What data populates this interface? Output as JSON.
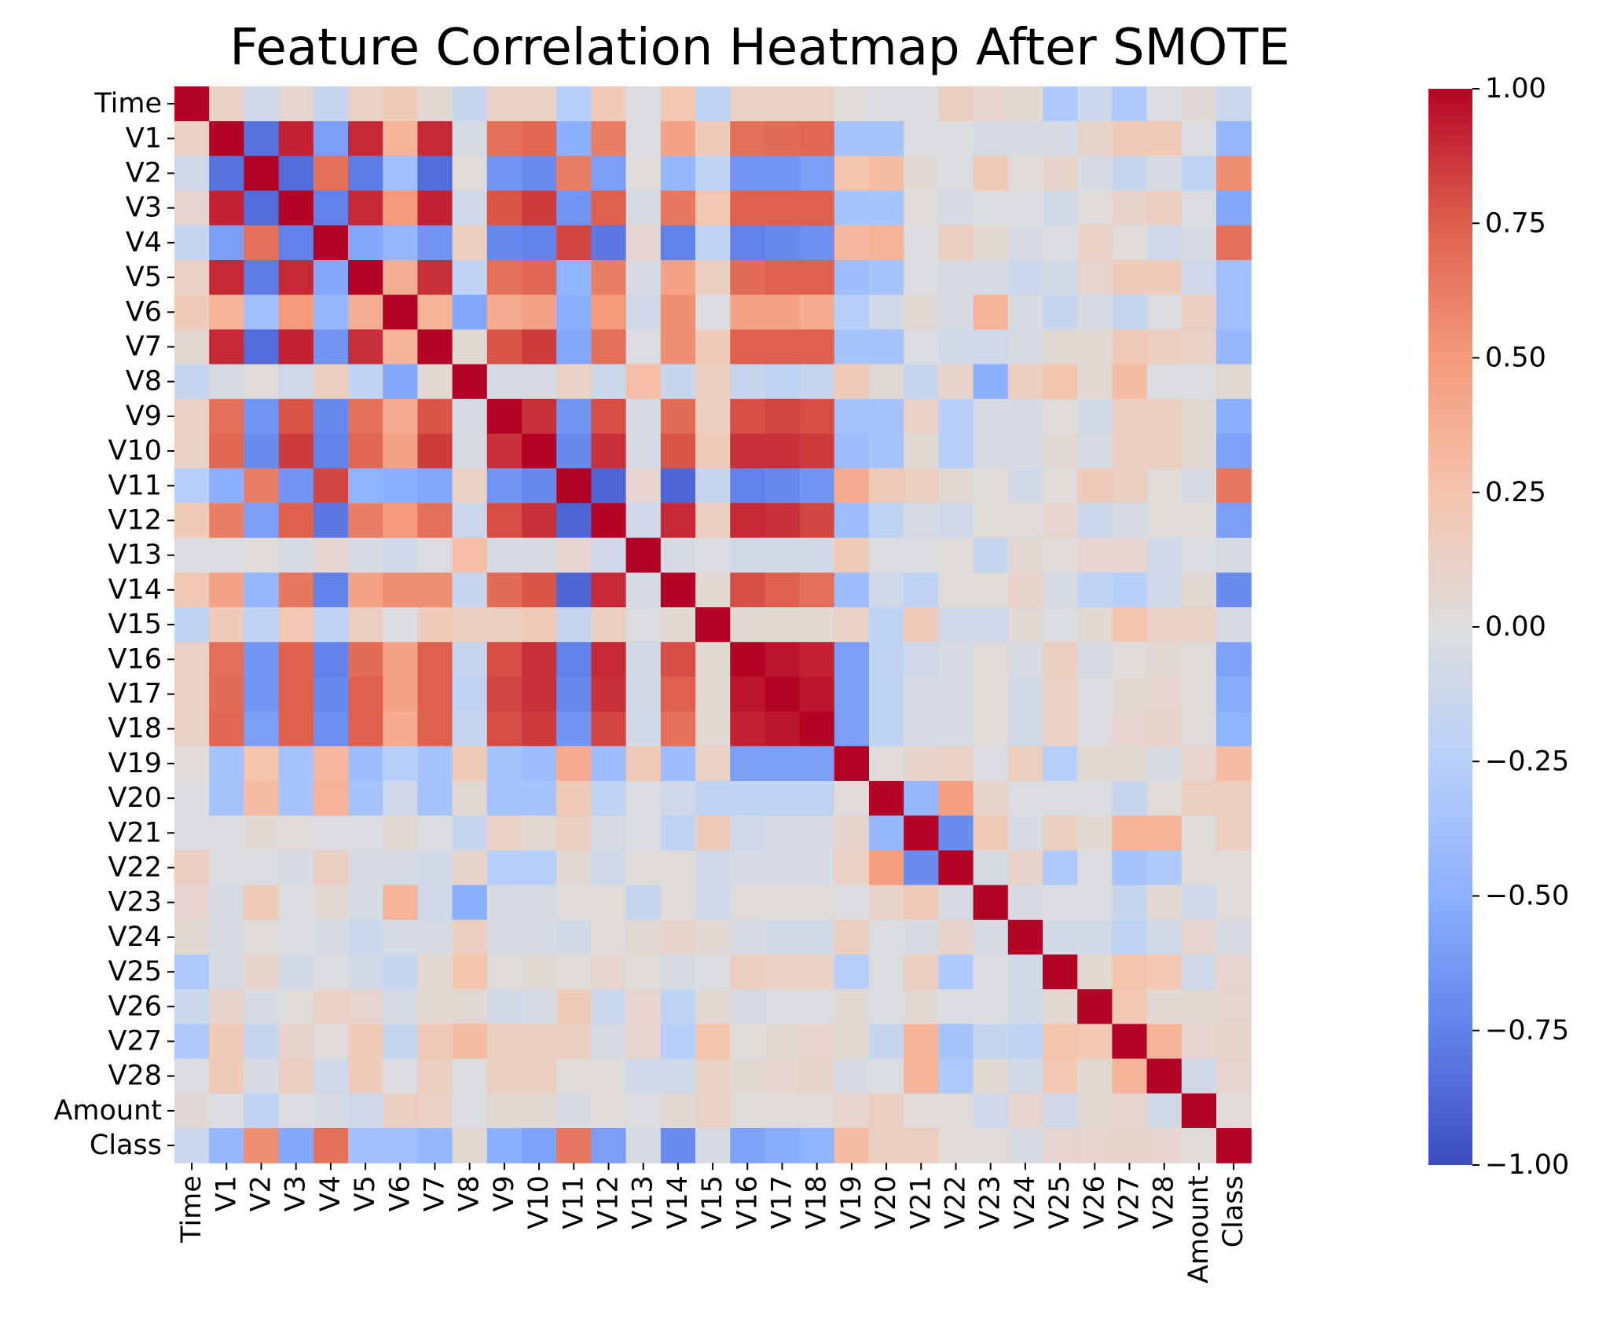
{
  "chart_data": {
    "type": "heatmap",
    "title": "Feature Correlation Heatmap After SMOTE",
    "xlabel": "",
    "ylabel": "",
    "labels": [
      "Time",
      "V1",
      "V2",
      "V3",
      "V4",
      "V5",
      "V6",
      "V7",
      "V8",
      "V9",
      "V10",
      "V11",
      "V12",
      "V13",
      "V14",
      "V15",
      "V16",
      "V17",
      "V18",
      "V19",
      "V20",
      "V21",
      "V22",
      "V23",
      "V24",
      "V25",
      "V26",
      "V27",
      "V28",
      "Amount",
      "Class"
    ],
    "colormap": "coolwarm",
    "vmin": -1.0,
    "vmax": 1.0,
    "colorbar_ticks": [
      "1.00",
      "0.75",
      "0.50",
      "0.25",
      "0.00",
      "−0.25",
      "−0.50",
      "−0.75",
      "−1.00"
    ],
    "colorbar_tick_values": [
      1.0,
      0.75,
      0.5,
      0.25,
      0.0,
      -0.25,
      -0.5,
      -0.75,
      -1.0
    ],
    "matrix": [
      [
        1,
        0.12,
        -0.1,
        0.08,
        -0.15,
        0.12,
        0.18,
        0.06,
        -0.15,
        0.12,
        0.12,
        -0.25,
        0.2,
        -0.02,
        0.22,
        -0.2,
        0.12,
        0.12,
        0.12,
        0.02,
        -0.02,
        -0.02,
        0.15,
        0.08,
        0.05,
        -0.3,
        -0.12,
        -0.3,
        -0.02,
        0.04,
        -0.12
      ],
      [
        0.12,
        1,
        -0.82,
        0.92,
        -0.6,
        0.9,
        0.35,
        0.9,
        -0.05,
        0.68,
        0.72,
        -0.5,
        0.62,
        -0.02,
        0.45,
        0.18,
        0.68,
        0.7,
        0.72,
        -0.35,
        -0.35,
        -0.02,
        -0.02,
        -0.05,
        -0.05,
        -0.05,
        0.1,
        0.2,
        0.2,
        -0.02,
        -0.45
      ],
      [
        -0.1,
        -0.82,
        1,
        -0.85,
        0.68,
        -0.78,
        -0.38,
        -0.85,
        0.02,
        -0.65,
        -0.7,
        0.62,
        -0.6,
        0.02,
        -0.45,
        -0.2,
        -0.65,
        -0.65,
        -0.6,
        0.25,
        0.3,
        0.05,
        -0.02,
        0.2,
        0.02,
        0.1,
        -0.05,
        -0.15,
        -0.05,
        -0.2,
        0.55
      ],
      [
        0.08,
        0.92,
        -0.85,
        1,
        -0.75,
        0.9,
        0.5,
        0.92,
        -0.1,
        0.78,
        0.85,
        -0.65,
        0.75,
        -0.05,
        0.65,
        0.22,
        0.75,
        0.75,
        0.75,
        -0.35,
        -0.35,
        0.02,
        -0.05,
        -0.02,
        -0.02,
        -0.08,
        0.02,
        0.1,
        0.15,
        -0.02,
        -0.55
      ],
      [
        -0.15,
        -0.6,
        0.68,
        -0.75,
        1,
        -0.55,
        -0.45,
        -0.65,
        0.15,
        -0.72,
        -0.75,
        0.82,
        -0.8,
        0.08,
        -0.75,
        -0.2,
        -0.75,
        -0.72,
        -0.68,
        0.32,
        0.35,
        -0.02,
        0.15,
        0.05,
        -0.05,
        -0.02,
        0.12,
        0.02,
        -0.1,
        -0.05,
        0.68
      ],
      [
        0.12,
        0.9,
        -0.78,
        0.9,
        -0.55,
        1,
        0.38,
        0.88,
        -0.2,
        0.68,
        0.72,
        -0.48,
        0.62,
        -0.05,
        0.45,
        0.15,
        0.7,
        0.75,
        0.75,
        -0.4,
        -0.35,
        -0.02,
        -0.05,
        -0.05,
        -0.12,
        -0.08,
        0.08,
        0.18,
        0.18,
        -0.1,
        -0.38
      ],
      [
        0.18,
        0.35,
        -0.38,
        0.5,
        -0.45,
        0.38,
        1,
        0.35,
        -0.55,
        0.4,
        0.45,
        -0.5,
        0.5,
        -0.1,
        0.55,
        -0.02,
        0.45,
        0.45,
        0.4,
        -0.25,
        -0.1,
        0.05,
        -0.05,
        0.35,
        -0.05,
        -0.15,
        -0.05,
        -0.15,
        -0.02,
        0.15,
        -0.38
      ],
      [
        0.06,
        0.9,
        -0.85,
        0.92,
        -0.65,
        0.88,
        0.35,
        1,
        0.05,
        0.78,
        0.85,
        -0.55,
        0.68,
        -0.02,
        0.55,
        0.18,
        0.75,
        0.75,
        0.75,
        -0.35,
        -0.35,
        -0.02,
        -0.08,
        -0.1,
        -0.05,
        0.05,
        0.05,
        0.2,
        0.15,
        0.12,
        -0.45
      ],
      [
        -0.15,
        -0.05,
        0.02,
        -0.1,
        0.15,
        -0.2,
        -0.55,
        0.05,
        1,
        -0.05,
        -0.05,
        0.12,
        -0.12,
        0.28,
        -0.15,
        0.15,
        -0.15,
        -0.2,
        -0.15,
        0.2,
        0.05,
        -0.15,
        0.1,
        -0.5,
        0.15,
        0.25,
        0.05,
        0.3,
        -0.02,
        -0.02,
        0.05
      ],
      [
        0.12,
        0.68,
        -0.65,
        0.78,
        -0.72,
        0.68,
        0.4,
        0.78,
        -0.05,
        1,
        0.88,
        -0.65,
        0.8,
        -0.05,
        0.7,
        0.15,
        0.8,
        0.82,
        0.8,
        -0.35,
        -0.35,
        0.12,
        -0.25,
        -0.05,
        -0.05,
        0.02,
        -0.08,
        0.15,
        0.15,
        0.05,
        -0.5
      ],
      [
        0.12,
        0.72,
        -0.7,
        0.85,
        -0.75,
        0.72,
        0.45,
        0.85,
        -0.05,
        0.88,
        1,
        -0.72,
        0.88,
        -0.05,
        0.78,
        0.2,
        0.88,
        0.88,
        0.85,
        -0.4,
        -0.35,
        0.05,
        -0.25,
        -0.05,
        -0.05,
        0.05,
        -0.05,
        0.15,
        0.15,
        0.05,
        -0.58
      ],
      [
        -0.25,
        -0.5,
        0.62,
        -0.65,
        0.82,
        -0.48,
        -0.5,
        -0.55,
        0.12,
        -0.65,
        -0.72,
        1,
        -0.88,
        0.08,
        -0.88,
        -0.15,
        -0.75,
        -0.72,
        -0.65,
        0.4,
        0.2,
        0.15,
        0.05,
        0.02,
        -0.08,
        0.02,
        0.18,
        0.15,
        0.02,
        -0.05,
        0.65
      ],
      [
        0.2,
        0.62,
        -0.6,
        0.75,
        -0.8,
        0.62,
        0.5,
        0.68,
        -0.12,
        0.8,
        0.88,
        -0.88,
        1,
        -0.1,
        0.9,
        0.15,
        0.9,
        0.88,
        0.82,
        -0.4,
        -0.2,
        -0.05,
        -0.1,
        0.02,
        0.02,
        0.08,
        -0.12,
        -0.05,
        0.02,
        0.02,
        -0.6
      ],
      [
        -0.02,
        -0.02,
        0.02,
        -0.05,
        0.08,
        -0.05,
        -0.1,
        -0.02,
        0.28,
        -0.05,
        -0.05,
        0.08,
        -0.1,
        1,
        -0.05,
        -0.02,
        -0.08,
        -0.08,
        -0.08,
        0.2,
        -0.02,
        -0.02,
        0.02,
        -0.15,
        0.05,
        0.02,
        0.08,
        0.08,
        -0.1,
        -0.02,
        -0.05
      ],
      [
        0.22,
        0.45,
        -0.45,
        0.65,
        -0.75,
        0.45,
        0.55,
        0.55,
        -0.15,
        0.7,
        0.78,
        -0.88,
        0.9,
        -0.05,
        1,
        0.05,
        0.8,
        0.75,
        0.68,
        -0.4,
        -0.1,
        -0.2,
        0.02,
        0.02,
        0.1,
        -0.05,
        -0.2,
        -0.25,
        -0.1,
        0.05,
        -0.7
      ],
      [
        -0.2,
        0.18,
        -0.2,
        0.22,
        -0.2,
        0.15,
        -0.02,
        0.18,
        0.15,
        0.15,
        0.2,
        -0.15,
        0.15,
        -0.02,
        0.05,
        1,
        0.05,
        0.05,
        0.05,
        0.12,
        -0.2,
        0.18,
        -0.1,
        -0.1,
        0.05,
        -0.02,
        0.05,
        0.25,
        0.12,
        0.12,
        -0.05
      ],
      [
        0.12,
        0.68,
        -0.65,
        0.75,
        -0.75,
        0.7,
        0.45,
        0.75,
        -0.15,
        0.8,
        0.88,
        -0.75,
        0.9,
        -0.08,
        0.8,
        0.05,
        1,
        0.95,
        0.92,
        -0.6,
        -0.2,
        -0.1,
        -0.05,
        0.02,
        -0.05,
        0.15,
        -0.05,
        0.02,
        0.05,
        0.02,
        -0.58
      ],
      [
        0.12,
        0.7,
        -0.65,
        0.75,
        -0.72,
        0.75,
        0.45,
        0.75,
        -0.2,
        0.82,
        0.88,
        -0.72,
        0.88,
        -0.08,
        0.75,
        0.05,
        0.95,
        1,
        0.95,
        -0.6,
        -0.2,
        -0.05,
        -0.05,
        0.02,
        -0.08,
        0.12,
        -0.02,
        0.05,
        0.08,
        0.02,
        -0.52
      ],
      [
        0.12,
        0.72,
        -0.6,
        0.75,
        -0.68,
        0.75,
        0.4,
        0.75,
        -0.15,
        0.8,
        0.85,
        -0.65,
        0.82,
        -0.08,
        0.68,
        0.05,
        0.92,
        0.95,
        1,
        -0.6,
        -0.2,
        -0.05,
        -0.05,
        0.02,
        -0.08,
        0.12,
        -0.02,
        0.08,
        0.1,
        0.02,
        -0.48
      ],
      [
        0.02,
        -0.35,
        0.25,
        -0.35,
        0.32,
        -0.4,
        -0.25,
        -0.35,
        0.2,
        -0.35,
        -0.4,
        0.4,
        -0.4,
        0.2,
        -0.4,
        0.12,
        -0.6,
        -0.6,
        -0.6,
        1,
        0.02,
        0.1,
        0.12,
        -0.02,
        0.15,
        -0.25,
        0.05,
        0.05,
        -0.05,
        0.08,
        0.3
      ],
      [
        -0.02,
        -0.35,
        0.3,
        -0.35,
        0.35,
        -0.35,
        -0.1,
        -0.35,
        0.05,
        -0.35,
        -0.35,
        0.2,
        -0.2,
        -0.02,
        -0.1,
        -0.2,
        -0.2,
        -0.2,
        -0.2,
        0.02,
        1,
        -0.45,
        0.48,
        0.1,
        -0.02,
        -0.02,
        -0.02,
        -0.15,
        0.02,
        0.15,
        0.15
      ],
      [
        -0.02,
        -0.02,
        0.05,
        0.02,
        -0.02,
        -0.02,
        0.05,
        -0.02,
        -0.15,
        0.12,
        0.05,
        0.15,
        -0.05,
        -0.02,
        -0.2,
        0.18,
        -0.1,
        -0.05,
        -0.05,
        0.1,
        -0.45,
        1,
        -0.7,
        0.2,
        -0.05,
        0.15,
        0.05,
        0.35,
        0.35,
        0.02,
        0.15
      ],
      [
        0.15,
        -0.02,
        -0.02,
        -0.05,
        0.15,
        -0.05,
        -0.05,
        -0.08,
        0.1,
        -0.25,
        -0.25,
        0.05,
        -0.1,
        0.02,
        0.02,
        -0.1,
        -0.05,
        -0.05,
        -0.05,
        0.12,
        0.48,
        -0.7,
        1,
        -0.05,
        0.1,
        -0.3,
        -0.02,
        -0.35,
        -0.3,
        0.02,
        0.02
      ],
      [
        0.08,
        -0.05,
        0.2,
        -0.02,
        0.05,
        -0.05,
        0.35,
        -0.1,
        -0.5,
        -0.05,
        -0.05,
        0.02,
        0.02,
        -0.15,
        0.02,
        -0.1,
        0.02,
        0.02,
        0.02,
        -0.02,
        0.1,
        0.2,
        -0.05,
        1,
        -0.05,
        -0.02,
        -0.02,
        -0.15,
        0.05,
        -0.1,
        0.02
      ],
      [
        0.05,
        -0.05,
        0.02,
        -0.02,
        -0.05,
        -0.12,
        -0.05,
        -0.05,
        0.15,
        -0.05,
        -0.05,
        -0.08,
        0.02,
        0.05,
        0.1,
        0.05,
        -0.05,
        -0.08,
        -0.08,
        0.15,
        -0.02,
        -0.05,
        0.1,
        -0.05,
        1,
        -0.08,
        -0.08,
        -0.2,
        -0.08,
        0.08,
        -0.05
      ],
      [
        -0.3,
        -0.05,
        0.1,
        -0.08,
        -0.02,
        -0.08,
        -0.15,
        0.05,
        0.25,
        0.02,
        0.05,
        0.02,
        0.08,
        0.02,
        -0.05,
        -0.02,
        0.15,
        0.12,
        0.12,
        -0.25,
        -0.02,
        0.15,
        -0.3,
        -0.02,
        -0.08,
        1,
        0.05,
        0.25,
        0.22,
        -0.1,
        0.08
      ],
      [
        -0.12,
        0.1,
        -0.05,
        0.02,
        0.12,
        0.08,
        -0.05,
        0.05,
        0.05,
        -0.08,
        -0.05,
        0.18,
        -0.12,
        0.08,
        -0.2,
        0.05,
        -0.05,
        -0.02,
        -0.02,
        0.05,
        -0.02,
        0.05,
        -0.02,
        -0.02,
        -0.08,
        0.05,
        1,
        0.22,
        0.05,
        0.05,
        0.08
      ],
      [
        -0.3,
        0.2,
        -0.15,
        0.1,
        0.02,
        0.18,
        -0.15,
        0.2,
        0.3,
        0.15,
        0.15,
        0.15,
        -0.05,
        0.08,
        -0.25,
        0.25,
        0.02,
        0.05,
        0.08,
        0.05,
        -0.15,
        0.35,
        -0.35,
        -0.15,
        -0.2,
        0.25,
        0.22,
        1,
        0.35,
        0.08,
        0.1
      ],
      [
        -0.02,
        0.2,
        -0.05,
        0.15,
        -0.1,
        0.18,
        -0.02,
        0.15,
        -0.02,
        0.15,
        0.15,
        0.02,
        0.02,
        -0.1,
        -0.1,
        0.12,
        0.05,
        0.08,
        0.1,
        -0.05,
        -0.02,
        0.35,
        -0.3,
        0.05,
        -0.08,
        0.22,
        0.05,
        0.35,
        1,
        -0.08,
        0.08
      ],
      [
        0.04,
        -0.02,
        -0.2,
        -0.02,
        -0.05,
        -0.1,
        0.15,
        0.12,
        -0.02,
        0.05,
        0.05,
        -0.05,
        0.02,
        -0.02,
        0.05,
        0.12,
        0.02,
        0.02,
        0.02,
        0.08,
        0.15,
        0.02,
        0.02,
        -0.1,
        0.08,
        -0.1,
        0.05,
        0.08,
        -0.08,
        1,
        0.02
      ],
      [
        -0.12,
        -0.45,
        0.55,
        -0.55,
        0.68,
        -0.38,
        -0.38,
        -0.45,
        0.05,
        -0.5,
        -0.58,
        0.65,
        -0.6,
        -0.05,
        -0.7,
        -0.05,
        -0.58,
        -0.52,
        -0.48,
        0.3,
        0.15,
        0.15,
        0.02,
        0.02,
        -0.05,
        0.08,
        0.08,
        0.1,
        0.08,
        0.02,
        1
      ]
    ]
  }
}
